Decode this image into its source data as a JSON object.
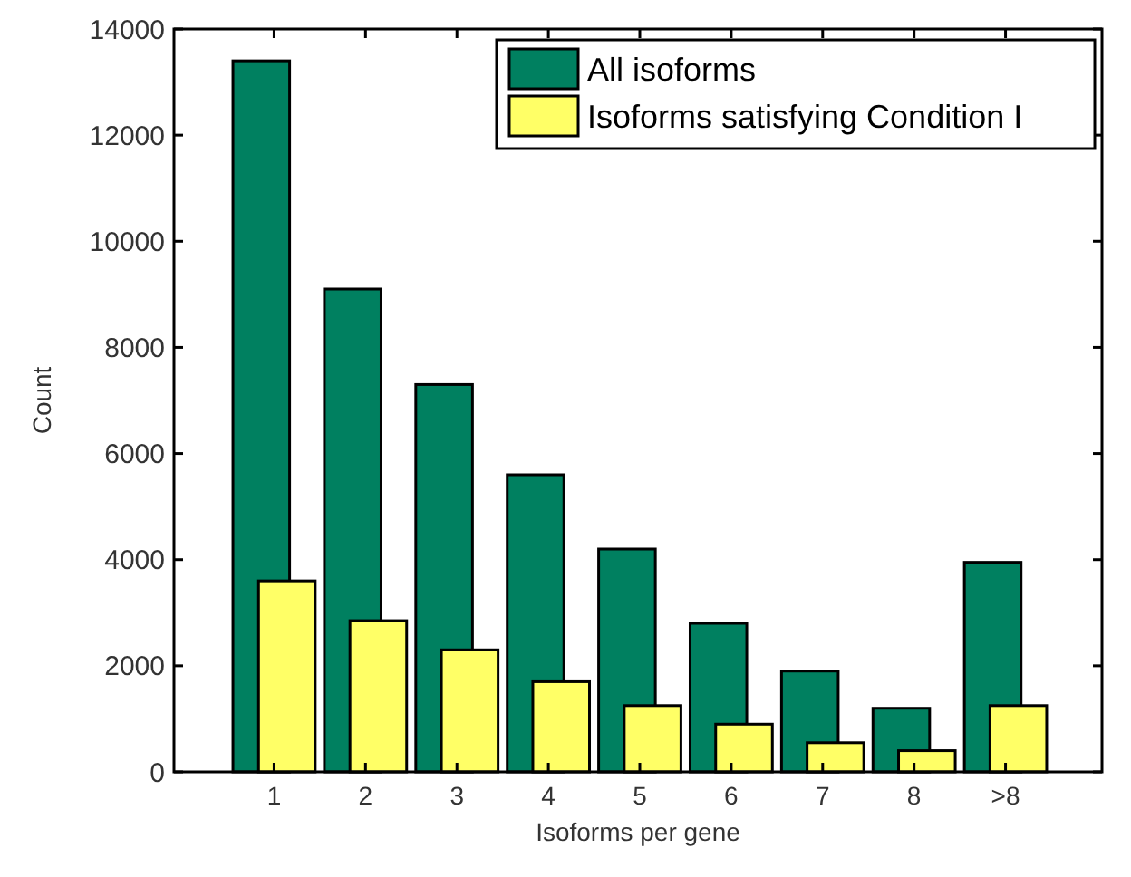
{
  "chart_data": {
    "type": "bar",
    "xlabel": "Isoforms per gene",
    "ylabel": "Count",
    "categories": [
      "1",
      "2",
      "3",
      "4",
      "5",
      "6",
      "7",
      "8",
      ">8"
    ],
    "series": [
      {
        "name": "All isoforms",
        "color": "#008060",
        "values": [
          13400,
          9100,
          7300,
          5600,
          4200,
          2800,
          1900,
          1200,
          3950
        ]
      },
      {
        "name": "Isoforms satisfying Condition I",
        "color": "#ffff66",
        "values": [
          3600,
          2850,
          2300,
          1700,
          1250,
          900,
          550,
          400,
          1250
        ]
      }
    ],
    "ylim": [
      0,
      14000
    ],
    "yticks": [
      0,
      2000,
      4000,
      6000,
      8000,
      10000,
      12000,
      14000
    ],
    "legend": "top right"
  }
}
